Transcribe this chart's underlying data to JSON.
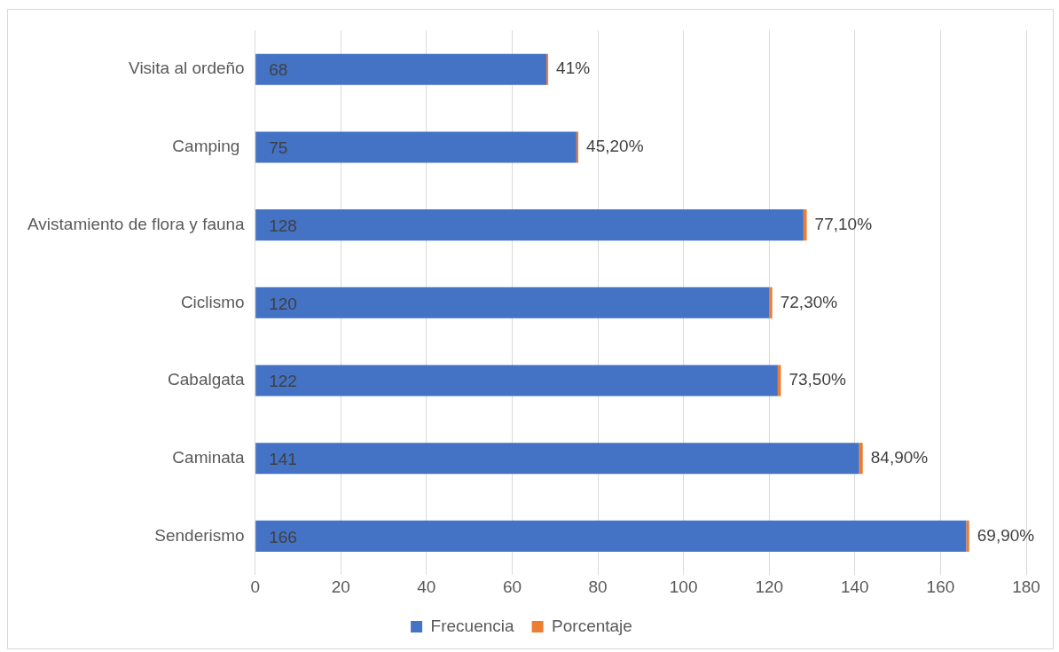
{
  "chart_data": {
    "type": "bar",
    "orientation": "horizontal",
    "stacked": true,
    "categories": [
      "Visita al ordeño",
      "Camping ",
      "Avistamiento de flora y fauna",
      "Ciclismo",
      "Cabalgata",
      "Caminata",
      "Senderismo"
    ],
    "series": [
      {
        "name": "Frecuencia",
        "color": "#4472c4",
        "values": [
          68,
          75,
          128,
          120,
          122,
          141,
          166
        ],
        "value_labels": [
          "68",
          "75",
          "128",
          "120",
          "122",
          "141",
          "166"
        ]
      },
      {
        "name": "Porcentaje",
        "color": "#ed7d31",
        "values": [
          0.41,
          0.452,
          0.771,
          0.723,
          0.735,
          0.849,
          0.699
        ],
        "value_labels": [
          "41%",
          "45,20%",
          "77,10%",
          "72,30%",
          "73,50%",
          "84,90%",
          "69,90%"
        ]
      }
    ],
    "xlim": [
      0,
      180
    ],
    "xticks": [
      0,
      20,
      40,
      60,
      80,
      100,
      120,
      140,
      160,
      180
    ],
    "grid": "x",
    "legend": "bottom"
  }
}
